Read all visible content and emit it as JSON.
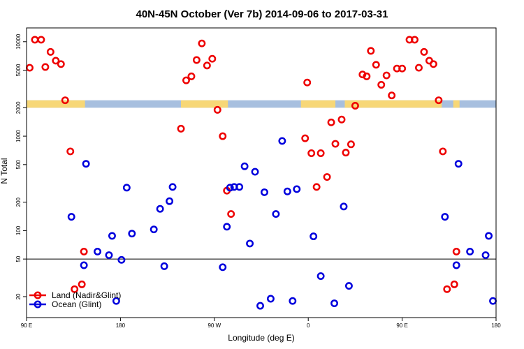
{
  "chart_data": {
    "type": "scatter",
    "title": "40N-45N October (Ver 7b)   2014-09-06 to 2017-03-31",
    "xlabel": "Longitude (deg E)",
    "ylabel": "N Total",
    "x_scale": "linear",
    "y_scale": "log",
    "xlim": [
      90,
      540
    ],
    "ylim": [
      12,
      14000
    ],
    "x_ticks": [
      {
        "value": 90,
        "label": "90 E"
      },
      {
        "value": 180,
        "label": "180"
      },
      {
        "value": 270,
        "label": "90 W"
      },
      {
        "value": 360,
        "label": "0"
      },
      {
        "value": 450,
        "label": "90 E"
      },
      {
        "value": 540,
        "label": "180"
      }
    ],
    "y_ticks": [
      {
        "value": 20,
        "label": "20"
      },
      {
        "value": 50,
        "label": "50"
      },
      {
        "value": 100,
        "label": "100"
      },
      {
        "value": 200,
        "label": "200"
      },
      {
        "value": 500,
        "label": "500"
      },
      {
        "value": 1000,
        "label": "1000"
      },
      {
        "value": 2000,
        "label": "2000"
      },
      {
        "value": 5000,
        "label": "5000"
      },
      {
        "value": 10000,
        "label": "10000"
      }
    ],
    "reference_line_y": 50,
    "surface_band": {
      "y_range": [
        2000,
        2400
      ],
      "ocean_color": "#a7bfdf",
      "land_color": "#f7d777",
      "land_x_ranges": [
        [
          90,
          146
        ],
        [
          238,
          283
        ],
        [
          353,
          386
        ],
        [
          395,
          488
        ],
        [
          499,
          505
        ]
      ]
    },
    "legend": {
      "position": "bottom-left"
    },
    "series": [
      {
        "name": "Land (Nadir&Glint)",
        "color": "#ee0000",
        "points": [
          {
            "x": 93,
            "y": 5300
          },
          {
            "x": 98,
            "y": 10500
          },
          {
            "x": 104,
            "y": 10500
          },
          {
            "x": 108,
            "y": 5400
          },
          {
            "x": 113,
            "y": 7800
          },
          {
            "x": 118,
            "y": 6300
          },
          {
            "x": 123,
            "y": 5800
          },
          {
            "x": 127,
            "y": 2400
          },
          {
            "x": 132,
            "y": 690
          },
          {
            "x": 136,
            "y": 24
          },
          {
            "x": 143,
            "y": 27
          },
          {
            "x": 145,
            "y": 60
          },
          {
            "x": 238,
            "y": 1200
          },
          {
            "x": 243,
            "y": 3900
          },
          {
            "x": 248,
            "y": 4300
          },
          {
            "x": 253,
            "y": 6400
          },
          {
            "x": 258,
            "y": 9600
          },
          {
            "x": 263,
            "y": 5600
          },
          {
            "x": 268,
            "y": 6600
          },
          {
            "x": 273,
            "y": 1900
          },
          {
            "x": 278,
            "y": 1000
          },
          {
            "x": 282,
            "y": 265
          },
          {
            "x": 286,
            "y": 150
          },
          {
            "x": 357,
            "y": 950
          },
          {
            "x": 359,
            "y": 3700
          },
          {
            "x": 363,
            "y": 660
          },
          {
            "x": 368,
            "y": 290
          },
          {
            "x": 372,
            "y": 660
          },
          {
            "x": 378,
            "y": 370
          },
          {
            "x": 382,
            "y": 1400
          },
          {
            "x": 386,
            "y": 830
          },
          {
            "x": 392,
            "y": 1500
          },
          {
            "x": 396,
            "y": 670
          },
          {
            "x": 401,
            "y": 820
          },
          {
            "x": 405,
            "y": 2100
          },
          {
            "x": 412,
            "y": 4500
          },
          {
            "x": 416,
            "y": 4300
          },
          {
            "x": 420,
            "y": 8000
          },
          {
            "x": 425,
            "y": 5700
          },
          {
            "x": 430,
            "y": 3500
          },
          {
            "x": 435,
            "y": 4400
          },
          {
            "x": 440,
            "y": 2700
          },
          {
            "x": 445,
            "y": 5200
          },
          {
            "x": 450,
            "y": 5200
          },
          {
            "x": 457,
            "y": 10500
          },
          {
            "x": 462,
            "y": 10500
          },
          {
            "x": 466,
            "y": 5300
          },
          {
            "x": 471,
            "y": 7800
          },
          {
            "x": 476,
            "y": 6300
          },
          {
            "x": 480,
            "y": 5800
          },
          {
            "x": 485,
            "y": 2400
          },
          {
            "x": 489,
            "y": 690
          },
          {
            "x": 493,
            "y": 24
          },
          {
            "x": 500,
            "y": 27
          },
          {
            "x": 502,
            "y": 60
          }
        ]
      },
      {
        "name": "Ocean (Glint)",
        "color": "#0000dd",
        "points": [
          {
            "x": 133,
            "y": 140
          },
          {
            "x": 145,
            "y": 43
          },
          {
            "x": 147,
            "y": 510
          },
          {
            "x": 158,
            "y": 60
          },
          {
            "x": 169,
            "y": 55
          },
          {
            "x": 172,
            "y": 88
          },
          {
            "x": 176,
            "y": 18
          },
          {
            "x": 181,
            "y": 49
          },
          {
            "x": 186,
            "y": 285
          },
          {
            "x": 191,
            "y": 93
          },
          {
            "x": 212,
            "y": 103
          },
          {
            "x": 218,
            "y": 170
          },
          {
            "x": 222,
            "y": 42
          },
          {
            "x": 227,
            "y": 205
          },
          {
            "x": 230,
            "y": 290
          },
          {
            "x": 278,
            "y": 41
          },
          {
            "x": 282,
            "y": 110
          },
          {
            "x": 285,
            "y": 285
          },
          {
            "x": 289,
            "y": 290
          },
          {
            "x": 294,
            "y": 290
          },
          {
            "x": 299,
            "y": 480
          },
          {
            "x": 304,
            "y": 73
          },
          {
            "x": 309,
            "y": 420
          },
          {
            "x": 314,
            "y": 16
          },
          {
            "x": 318,
            "y": 255
          },
          {
            "x": 324,
            "y": 19
          },
          {
            "x": 329,
            "y": 150
          },
          {
            "x": 335,
            "y": 890
          },
          {
            "x": 340,
            "y": 260
          },
          {
            "x": 345,
            "y": 18
          },
          {
            "x": 349,
            "y": 275
          },
          {
            "x": 365,
            "y": 87
          },
          {
            "x": 372,
            "y": 33
          },
          {
            "x": 385,
            "y": 17
          },
          {
            "x": 394,
            "y": 180
          },
          {
            "x": 399,
            "y": 26
          },
          {
            "x": 491,
            "y": 140
          },
          {
            "x": 502,
            "y": 43
          },
          {
            "x": 504,
            "y": 510
          },
          {
            "x": 515,
            "y": 60
          },
          {
            "x": 530,
            "y": 55
          },
          {
            "x": 533,
            "y": 88
          },
          {
            "x": 537,
            "y": 18
          }
        ]
      }
    ]
  }
}
